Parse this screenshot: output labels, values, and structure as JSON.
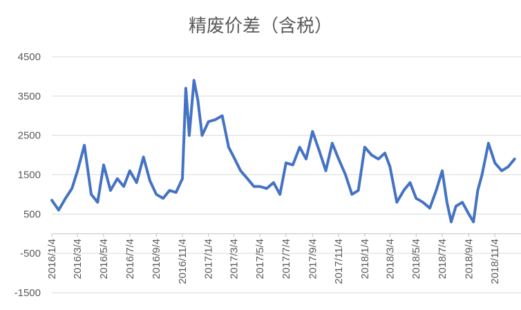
{
  "chart_data": {
    "type": "line",
    "title": "精废价差（含税）",
    "xlabel": "",
    "ylabel": "",
    "ylim": [
      -1500,
      4500
    ],
    "yticks": [
      -1500,
      -500,
      500,
      1500,
      2500,
      3500,
      4500
    ],
    "grid": true,
    "legend": "none",
    "x_tick_labels": [
      "2016/1/4",
      "2016/3/4",
      "2016/5/4",
      "2016/7/4",
      "2016/9/4",
      "2016/11/4",
      "2017/1/4",
      "2017/3/4",
      "2017/5/4",
      "2017/7/4",
      "2017/9/4",
      "2017/11/4",
      "2018/1/4",
      "2018/3/4",
      "2018/5/4",
      "2018/7/4",
      "2018/9/4",
      "2018/11/4"
    ],
    "series": [
      {
        "color": "#4472c4",
        "x": [
          "2016/1/4",
          "2016/1/20",
          "2016/2/5",
          "2016/2/20",
          "2016/3/4",
          "2016/3/20",
          "2016/4/5",
          "2016/4/20",
          "2016/5/4",
          "2016/5/20",
          "2016/6/5",
          "2016/6/20",
          "2016/7/4",
          "2016/7/20",
          "2016/8/5",
          "2016/8/20",
          "2016/9/4",
          "2016/9/20",
          "2016/10/5",
          "2016/10/20",
          "2016/11/4",
          "2016/11/12",
          "2016/11/20",
          "2016/12/1",
          "2016/12/10",
          "2016/12/20",
          "2017/1/4",
          "2017/1/20",
          "2017/2/5",
          "2017/2/20",
          "2017/3/4",
          "2017/3/20",
          "2017/4/5",
          "2017/4/20",
          "2017/5/4",
          "2017/5/20",
          "2017/6/5",
          "2017/6/20",
          "2017/7/4",
          "2017/7/20",
          "2017/8/5",
          "2017/8/20",
          "2017/9/4",
          "2017/9/20",
          "2017/10/5",
          "2017/10/20",
          "2017/11/4",
          "2017/11/20",
          "2017/12/5",
          "2017/12/20",
          "2018/1/4",
          "2018/1/20",
          "2018/2/5",
          "2018/2/20",
          "2018/3/4",
          "2018/3/20",
          "2018/4/5",
          "2018/4/20",
          "2018/5/4",
          "2018/5/20",
          "2018/6/5",
          "2018/6/20",
          "2018/7/4",
          "2018/7/15",
          "2018/7/25",
          "2018/8/5",
          "2018/8/20",
          "2018/9/4",
          "2018/9/15",
          "2018/9/25",
          "2018/10/5",
          "2018/10/20",
          "2018/11/4",
          "2018/11/20",
          "2018/12/5",
          "2018/12/20"
        ],
        "values": [
          850,
          600,
          900,
          1150,
          1600,
          2250,
          1000,
          800,
          1750,
          1100,
          1400,
          1200,
          1600,
          1300,
          1950,
          1350,
          1000,
          900,
          1100,
          1050,
          1400,
          3700,
          2500,
          3900,
          3400,
          2500,
          2850,
          2900,
          3000,
          2200,
          1950,
          1600,
          1400,
          1200,
          1200,
          1150,
          1300,
          1000,
          1800,
          1750,
          2200,
          1900,
          2600,
          2100,
          1600,
          2300,
          1900,
          1500,
          1000,
          1100,
          2200,
          2000,
          1900,
          2050,
          1700,
          800,
          1100,
          1300,
          900,
          800,
          650,
          1100,
          1600,
          800,
          300,
          700,
          800,
          500,
          300,
          1100,
          1500,
          2300,
          1800,
          1600,
          1700,
          1900
        ]
      }
    ]
  }
}
